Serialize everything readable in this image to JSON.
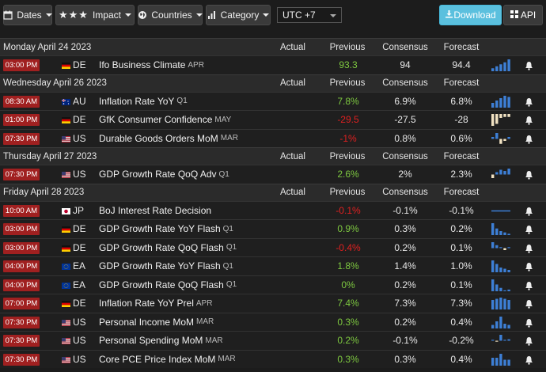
{
  "toolbar": {
    "dates_label": "Dates",
    "impact_label": "Impact",
    "impact_stars": "★★★",
    "countries_label": "Countries",
    "category_label": "Category",
    "timezone": "UTC +7",
    "download_label": "Download",
    "api_label": "API"
  },
  "columns": {
    "actual": "Actual",
    "previous": "Previous",
    "consensus": "Consensus",
    "forecast": "Forecast"
  },
  "groups": [
    {
      "date": "Monday April 24 2023",
      "rows": [
        {
          "time": "03:00 PM",
          "flag": "de",
          "country": "DE",
          "event": "Ifo Business Climate",
          "ref": "APR",
          "actual": "",
          "previous": "93.3",
          "previous_tone": "pos",
          "consensus": "94",
          "forecast": "94.4",
          "trend": [
            3,
            5,
            7,
            9,
            12
          ]
        }
      ]
    },
    {
      "date": "Wednesday April 26 2023",
      "rows": [
        {
          "time": "08:30 AM",
          "flag": "au",
          "country": "AU",
          "event": "Inflation Rate YoY",
          "ref": "Q1",
          "actual": "",
          "previous": "7.8%",
          "previous_tone": "pos",
          "consensus": "6.9%",
          "forecast": "6.8%",
          "trend": [
            4,
            6,
            8,
            10,
            9
          ]
        },
        {
          "time": "01:00 PM",
          "flag": "de",
          "country": "DE",
          "event": "GfK Consumer Confidence",
          "ref": "MAY",
          "actual": "",
          "previous": "-29.5",
          "previous_tone": "neg",
          "consensus": "-27.5",
          "forecast": "-28",
          "trend": [
            -12,
            -10,
            -4,
            -3,
            -3
          ]
        },
        {
          "time": "07:30 PM",
          "flag": "us",
          "country": "US",
          "event": "Durable Goods Orders MoM",
          "ref": "MAR",
          "actual": "",
          "previous": "-1%",
          "previous_tone": "neg",
          "consensus": "0.8%",
          "forecast": "0.6%",
          "trend": [
            2,
            6,
            -5,
            -2,
            2
          ]
        }
      ]
    },
    {
      "date": "Thursday April 27 2023",
      "rows": [
        {
          "time": "07:30 PM",
          "flag": "us",
          "country": "US",
          "event": "GDP Growth Rate QoQ Adv",
          "ref": "Q1",
          "actual": "",
          "previous": "2.6%",
          "previous_tone": "pos",
          "consensus": "2%",
          "forecast": "2.3%",
          "trend": [
            -3,
            2,
            4,
            3,
            5
          ]
        }
      ]
    },
    {
      "date": "Friday April 28 2023",
      "rows": [
        {
          "time": "10:00 AM",
          "flag": "jp",
          "country": "JP",
          "event": "BoJ Interest Rate Decision",
          "ref": "",
          "actual": "",
          "previous": "-0.1%",
          "previous_tone": "neg",
          "consensus": "-0.1%",
          "forecast": "-0.1%",
          "trend": [
            -1,
            -1,
            -1,
            -1,
            -1
          ]
        },
        {
          "time": "03:00 PM",
          "flag": "de",
          "country": "DE",
          "event": "GDP Growth Rate YoY Flash",
          "ref": "Q1",
          "actual": "",
          "previous": "0.9%",
          "previous_tone": "pos",
          "consensus": "0.3%",
          "forecast": "0.2%",
          "trend": [
            9,
            5,
            3,
            2,
            1
          ]
        },
        {
          "time": "03:00 PM",
          "flag": "de",
          "country": "DE",
          "event": "GDP Growth Rate QoQ Flash",
          "ref": "Q1",
          "actual": "",
          "previous": "-0.4%",
          "previous_tone": "neg",
          "consensus": "0.2%",
          "forecast": "0.1%",
          "trend": [
            6,
            3,
            1,
            -2,
            1
          ]
        },
        {
          "time": "04:00 PM",
          "flag": "ea",
          "country": "EA",
          "event": "GDP Growth Rate YoY Flash",
          "ref": "Q1",
          "actual": "",
          "previous": "1.8%",
          "previous_tone": "pos",
          "consensus": "1.4%",
          "forecast": "1.0%",
          "trend": [
            10,
            7,
            4,
            3,
            2
          ]
        },
        {
          "time": "04:00 PM",
          "flag": "ea",
          "country": "EA",
          "event": "GDP Growth Rate QoQ Flash",
          "ref": "Q1",
          "actual": "",
          "previous": "0%",
          "previous_tone": "pos",
          "consensus": "0.2%",
          "forecast": "0.1%",
          "trend": [
            7,
            4,
            2,
            0,
            1
          ]
        },
        {
          "time": "07:00 PM",
          "flag": "de",
          "country": "DE",
          "event": "Inflation Rate YoY Prel",
          "ref": "APR",
          "actual": "",
          "previous": "7.4%",
          "previous_tone": "pos",
          "consensus": "7.3%",
          "forecast": "7.3%",
          "trend": [
            8,
            9,
            10,
            9,
            8
          ]
        },
        {
          "time": "07:30 PM",
          "flag": "us",
          "country": "US",
          "event": "Personal Income MoM",
          "ref": "MAR",
          "actual": "",
          "previous": "0.3%",
          "previous_tone": "pos",
          "consensus": "0.2%",
          "forecast": "0.4%",
          "trend": [
            3,
            6,
            10,
            4,
            3
          ]
        },
        {
          "time": "07:30 PM",
          "flag": "us",
          "country": "US",
          "event": "Personal Spending MoM",
          "ref": "MAR",
          "actual": "",
          "previous": "0.2%",
          "previous_tone": "pos",
          "consensus": "-0.1%",
          "forecast": "-0.2%",
          "trend": [
            1,
            -1,
            8,
            1,
            2
          ]
        },
        {
          "time": "07:30 PM",
          "flag": "us",
          "country": "US",
          "event": "Core PCE Price Index MoM",
          "ref": "MAR",
          "actual": "",
          "previous": "0.3%",
          "previous_tone": "pos",
          "consensus": "0.3%",
          "forecast": "0.4%",
          "trend": [
            4,
            4,
            6,
            3,
            3
          ]
        }
      ]
    }
  ],
  "colors": {
    "positive": "#7ec940",
    "negative": "#e02020",
    "bar_up": "#3d7fd6",
    "bar_down": "#f1e2c2",
    "time_badge": "#a02020",
    "accent": "#5bc0de"
  }
}
